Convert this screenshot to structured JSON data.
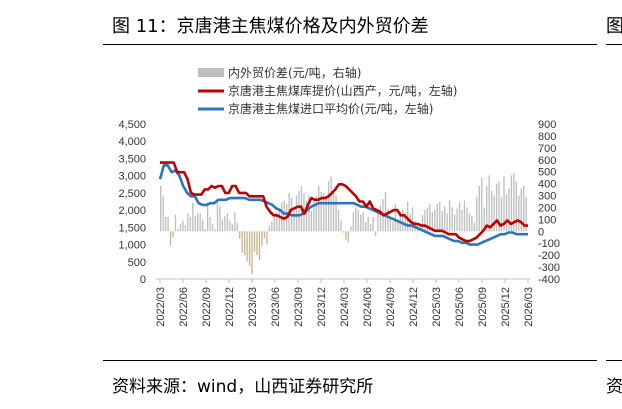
{
  "figure": {
    "title": "图 11：京唐港主焦煤价格及内外贸价差",
    "source": "资料来源：wind，山西证券研究所",
    "next_title_fragment": "图",
    "next_source_fragment": "资"
  },
  "colors": {
    "spread_bar_positive": "#bfbfbf",
    "spread_bar_negative": "#c8b78e",
    "domestic_line": "#c00000",
    "import_line": "#2e75b6"
  },
  "chart_data": {
    "type": "bar+line",
    "x_tick_labels": [
      "2022/03",
      "2022/06",
      "2022/09",
      "2022/12",
      "2023/03",
      "2023/06",
      "2023/09",
      "2023/12",
      "2024/03",
      "2024/06",
      "2024/09",
      "2024/12",
      "2025/03",
      "2025/06",
      "2025/09",
      "2025/12",
      "2026/03"
    ],
    "y_left": {
      "min": 0,
      "max": 4500,
      "ticks": [
        "0",
        "500",
        "1,000",
        "1,500",
        "2,000",
        "2,500",
        "3,000",
        "3,500",
        "4,000",
        "4,500"
      ]
    },
    "y_right": {
      "min": -400,
      "max": 900,
      "ticks": [
        "-400",
        "-300",
        "-200",
        "-100",
        "0",
        "100",
        "200",
        "300",
        "400",
        "500",
        "600",
        "700",
        "800",
        "900"
      ]
    },
    "legend_position": "top",
    "series": [
      {
        "name": "内外贸价差(元/吨，右轴)",
        "type": "bar",
        "axis": "right",
        "values": [
          380,
          300,
          120,
          120,
          -120,
          -50,
          140,
          20,
          60,
          90,
          50,
          150,
          120,
          240,
          130,
          160,
          150,
          100,
          20,
          240,
          120,
          60,
          20,
          260,
          210,
          100,
          130,
          150,
          90,
          60,
          160,
          70,
          -60,
          -180,
          -200,
          -250,
          -290,
          -360,
          -170,
          -200,
          -240,
          -120,
          -60,
          -110,
          50,
          80,
          120,
          160,
          190,
          240,
          260,
          230,
          320,
          280,
          190,
          300,
          340,
          380,
          320,
          260,
          300,
          170,
          250,
          300,
          380,
          330,
          320,
          290,
          420,
          460,
          320,
          300,
          180,
          90,
          -10,
          -70,
          -90,
          40,
          160,
          200,
          180,
          140,
          160,
          80,
          120,
          60,
          120,
          -40,
          150,
          220,
          270,
          330,
          190,
          120,
          80,
          230,
          90,
          140,
          180,
          160,
          250,
          150,
          200,
          90,
          60,
          40,
          140,
          180,
          200,
          230,
          160,
          180,
          230,
          250,
          170,
          210,
          150,
          260,
          200,
          140,
          190,
          240,
          180,
          260,
          200,
          150,
          130,
          70,
          290,
          380,
          450,
          200,
          380,
          470,
          340,
          300,
          400,
          420,
          290,
          460,
          310,
          360,
          470,
          490,
          420,
          300,
          360,
          380,
          290
        ],
        "values_note": ""
      },
      {
        "name": "京唐港主焦煤库提价(山西产，元/吨，左轴)",
        "type": "line",
        "axis": "left",
        "values": [
          3380,
          3380,
          3380,
          3380,
          3380,
          3100,
          3100,
          3100,
          2900,
          2500,
          2450,
          2450,
          2450,
          2600,
          2600,
          2700,
          2650,
          2700,
          2700,
          2500,
          2500,
          2700,
          2700,
          2500,
          2500,
          2500,
          2400,
          2400,
          2400,
          2400,
          2400,
          2100,
          1950,
          1850,
          1850,
          1800,
          1750,
          1800,
          2000,
          2050,
          2100,
          2100,
          1900,
          2150,
          2350,
          2300,
          2300,
          2350,
          2350,
          2400,
          2500,
          2600,
          2750,
          2750,
          2700,
          2600,
          2500,
          2400,
          2250,
          2250,
          2100,
          2250,
          2050,
          2000,
          1950,
          1850,
          1900,
          1950,
          2000,
          2000,
          1850,
          1850,
          1750,
          1650,
          1600,
          1600,
          1550,
          1550,
          1500,
          1450,
          1400,
          1400,
          1400,
          1350,
          1300,
          1300,
          1300,
          1200,
          1150,
          1100,
          1100,
          1150,
          1200,
          1300,
          1400,
          1550,
          1500,
          1600,
          1700,
          1550,
          1600,
          1700,
          1600,
          1650,
          1700,
          1650,
          1550,
          1550
        ]
      },
      {
        "name": "京唐港主焦煤进口平均价(元/吨，左轴)",
        "type": "line",
        "axis": "left",
        "values": [
          2900,
          3300,
          3300,
          3100,
          3150,
          3000,
          2700,
          2500,
          2400,
          2400,
          2200,
          2150,
          2150,
          2200,
          2200,
          2300,
          2300,
          2300,
          2350,
          2350,
          2350,
          2350,
          2350,
          2300,
          2300,
          2300,
          2300,
          2250,
          2200,
          2150,
          2050,
          2000,
          1900,
          1900,
          1850,
          1850,
          1850,
          1900,
          2000,
          2100,
          2150,
          2200,
          2200,
          2200,
          2200,
          2200,
          2200,
          2200,
          2200,
          2200,
          2200,
          2150,
          2100,
          2100,
          2050,
          2000,
          1950,
          1900,
          1850,
          1800,
          1750,
          1700,
          1650,
          1600,
          1550,
          1550,
          1500,
          1450,
          1400,
          1350,
          1300,
          1250,
          1250,
          1250,
          1200,
          1150,
          1100,
          1100,
          1050,
          1050,
          1000,
          1000,
          1000,
          1050,
          1100,
          1150,
          1200,
          1250,
          1300,
          1300,
          1350,
          1350,
          1300,
          1300,
          1300,
          1300
        ]
      }
    ]
  }
}
